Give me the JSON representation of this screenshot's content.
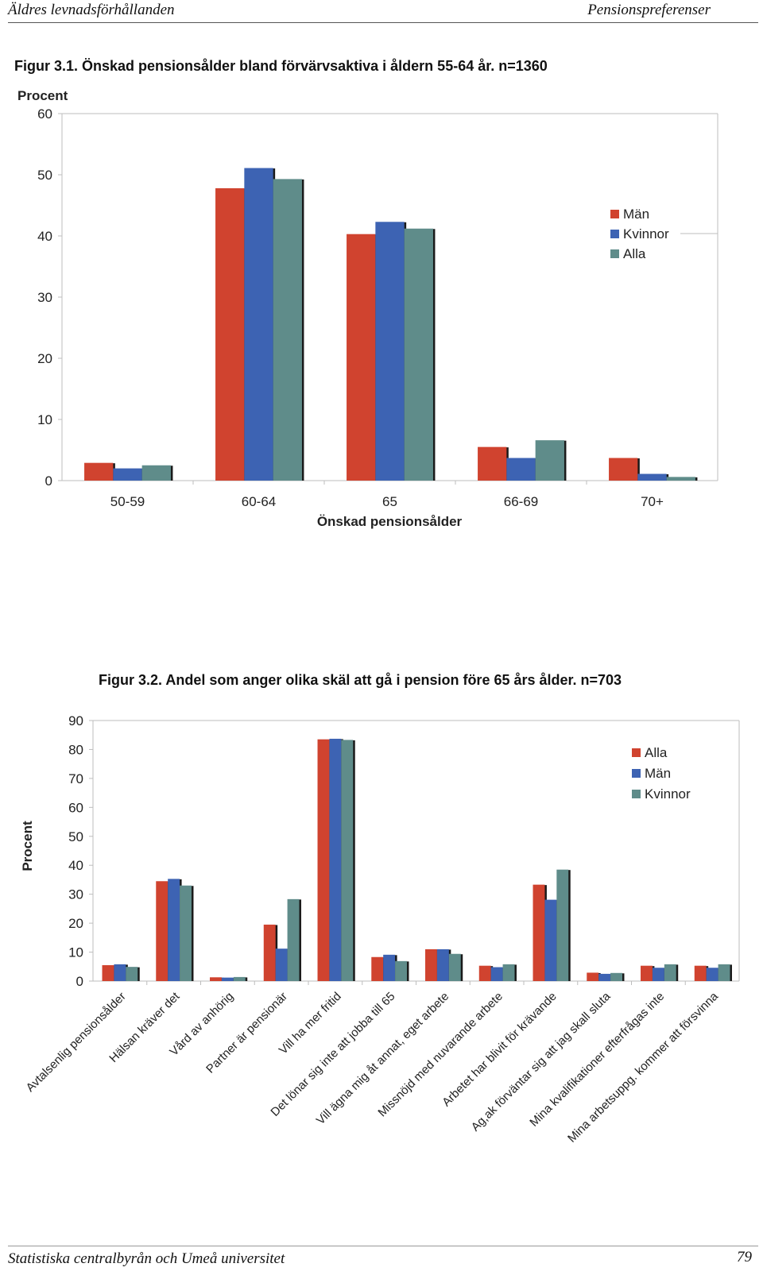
{
  "page": {
    "header_left": "Äldres levnadsförhållanden",
    "header_right": "Pensionspreferenser",
    "footer_left": "Statistiska centralbyrån och Umeå universitet",
    "page_number": "79"
  },
  "colors": {
    "red": "#d0432f",
    "blue": "#3d63b3",
    "teal": "#5f8c8a"
  },
  "chart_data": [
    {
      "type": "bar",
      "title": "Figur 3.1. Önskad pensionsålder bland förvärvsaktiva i åldern 55-64 år. n=1360",
      "ylabel": "Procent",
      "xlabel": "Önskad pensionsålder",
      "ylim": [
        0,
        60
      ],
      "yticks": [
        0,
        10,
        20,
        30,
        40,
        50,
        60
      ],
      "categories": [
        "50-59",
        "60-64",
        "65",
        "66-69",
        "70+"
      ],
      "series": [
        {
          "name": "Män",
          "color": "#d0432f",
          "values": [
            2.9,
            47.8,
            40.3,
            5.5,
            3.7
          ]
        },
        {
          "name": "Kvinnor",
          "color": "#3d63b3",
          "values": [
            2.0,
            51.1,
            42.3,
            3.7,
            1.1
          ]
        },
        {
          "name": "Alla",
          "color": "#5f8c8a",
          "values": [
            2.5,
            49.3,
            41.2,
            6.6,
            0.6
          ]
        }
      ],
      "grid": false,
      "legend": "right"
    },
    {
      "type": "bar",
      "title": "Figur 3.2. Andel som anger olika skäl att  gå i pension före 65 års ålder. n=703",
      "ylabel": "Procent",
      "xlabel": "",
      "ylim": [
        0,
        90
      ],
      "yticks": [
        0,
        10,
        20,
        30,
        40,
        50,
        60,
        70,
        80,
        90
      ],
      "categories": [
        "Avtalsenlig pensionsålder",
        "Hälsan kräver det",
        "Vård av anhörig",
        "Partner är pensionär",
        "Vill ha mer fritid",
        "Det lönar sig inte att jobba till 65",
        "Vill ägna mig åt annat, eget arbete",
        "Missnöjd med nuvarande arbete",
        "Arbetet har blivit för krävande",
        "Ag,ak förväntar sig att jag skall sluta",
        "Mina kvalifikationer efterfrågas inte",
        "Mina arbetsuppg. kommer att försvinna"
      ],
      "series": [
        {
          "name": "Alla",
          "color": "#d0432f",
          "values": [
            5.5,
            34.5,
            1.3,
            19.5,
            83.5,
            8.3,
            11.0,
            5.3,
            33.3,
            2.9,
            5.3,
            5.3
          ]
        },
        {
          "name": "Män",
          "color": "#3d63b3",
          "values": [
            5.8,
            35.3,
            1.2,
            11.2,
            83.7,
            9.1,
            11.0,
            4.8,
            28.1,
            2.5,
            4.6,
            4.6
          ]
        },
        {
          "name": "Kvinnor",
          "color": "#5f8c8a",
          "values": [
            4.9,
            33.0,
            1.4,
            28.3,
            83.3,
            6.9,
            9.4,
            5.8,
            38.5,
            2.8,
            5.8,
            5.8
          ]
        }
      ],
      "grid": false,
      "legend": "top-right"
    }
  ]
}
